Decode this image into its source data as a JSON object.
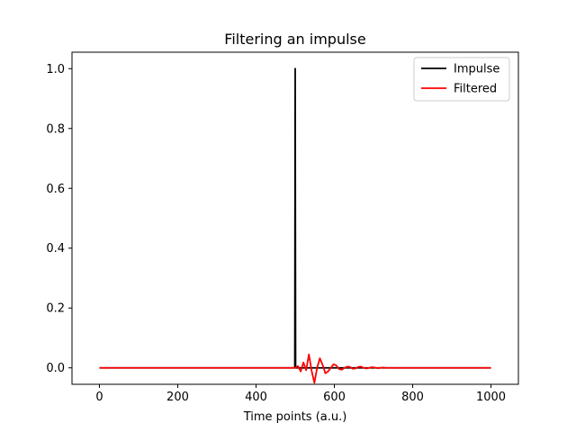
{
  "chart_data": {
    "type": "line",
    "title": "Filtering an impulse",
    "xlabel": "Time points (a.u.)",
    "ylabel": "",
    "xlim": [
      -70,
      1070
    ],
    "ylim": [
      -0.055,
      1.055
    ],
    "xticks": [
      0,
      200,
      400,
      600,
      800,
      1000
    ],
    "yticks": [
      0.0,
      0.2,
      0.4,
      0.6,
      0.8,
      1.0
    ],
    "xtick_labels": [
      "0",
      "200",
      "400",
      "600",
      "800",
      "1000"
    ],
    "ytick_labels": [
      "0.0",
      "0.2",
      "0.4",
      "0.6",
      "0.8",
      "1.0"
    ],
    "grid": false,
    "legend_position": "top-right",
    "series": [
      {
        "name": "Impulse",
        "color": "#000000",
        "x": [
          0,
          499,
          500,
          501,
          1000
        ],
        "y": [
          0,
          0,
          1,
          0,
          0
        ]
      },
      {
        "name": "Filtered",
        "color": "#ff0000",
        "x": [
          0,
          500,
          507,
          514,
          521,
          528,
          535,
          542,
          549,
          556,
          563,
          570,
          577,
          584,
          591,
          598,
          605,
          612,
          619,
          626,
          633,
          640,
          647,
          654,
          661,
          668,
          675,
          682,
          689,
          696,
          703,
          710,
          717,
          724,
          731,
          738,
          745,
          760,
          1000
        ],
        "y": [
          0,
          0,
          0.006,
          -0.012,
          0.018,
          -0.008,
          0.045,
          -0.01,
          -0.05,
          0.0,
          0.032,
          0.01,
          -0.018,
          -0.012,
          0.0,
          0.012,
          0.008,
          -0.004,
          -0.006,
          0.0,
          0.004,
          0.003,
          -0.003,
          -0.002,
          0.003,
          0.004,
          0.0,
          -0.002,
          0.0,
          0.002,
          0.001,
          -0.001,
          0.0,
          0.001,
          0.0,
          0.0,
          0.0,
          0.0,
          0.0
        ]
      }
    ]
  }
}
